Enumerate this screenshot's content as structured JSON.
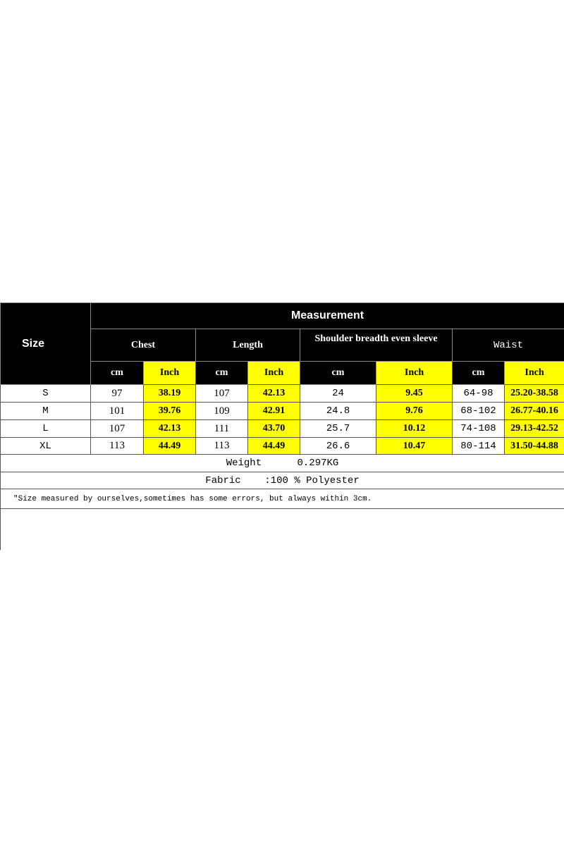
{
  "header": {
    "size_label": "Size",
    "measurement_label": "Measurement",
    "groups": [
      "Chest",
      "Length",
      "Shoulder breadth even sleeve",
      "Waist"
    ],
    "unit_cm": "cm",
    "unit_inch": "Inch"
  },
  "rows": [
    {
      "size": "S",
      "values": [
        "97",
        "38.19",
        "107",
        "42.13",
        "24",
        "9.45",
        "64-98",
        "25.20-38.58"
      ]
    },
    {
      "size": "M",
      "values": [
        "101",
        "39.76",
        "109",
        "42.91",
        "24.8",
        "9.76",
        "68-102",
        "26.77-40.16"
      ]
    },
    {
      "size": "L",
      "values": [
        "107",
        "42.13",
        "111",
        "43.70",
        "25.7",
        "10.12",
        "74-108",
        "29.13-42.52"
      ]
    },
    {
      "size": "XL",
      "values": [
        "113",
        "44.49",
        "113",
        "44.49",
        "26.6",
        "10.47",
        "80-114",
        "31.50-44.88"
      ]
    }
  ],
  "footer": {
    "weight": "Weight      0.297KG",
    "fabric": "Fabric    :100 % Polyester",
    "note": "\"Size measured by ourselves,sometimes has some errors, but always within 3cm."
  },
  "colors": {
    "header_bg": "#000000",
    "inch_highlight": "#ffff00"
  }
}
